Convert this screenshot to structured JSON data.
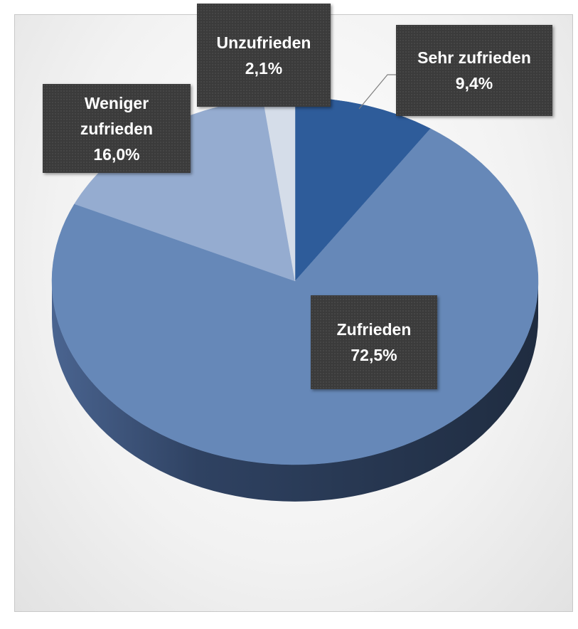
{
  "chart_data": {
    "type": "pie",
    "categories": [
      "Sehr zufrieden",
      "Zufrieden",
      "Weniger zufrieden",
      "Unzufrieden"
    ],
    "values": [
      9.4,
      72.5,
      16.0,
      2.1
    ],
    "value_labels": [
      "9,4%",
      "72,5%",
      "16,0%",
      "2,1%"
    ],
    "colors": [
      "#2e5c9a",
      "#6688b8",
      "#95acd0",
      "#d5dde9"
    ]
  }
}
